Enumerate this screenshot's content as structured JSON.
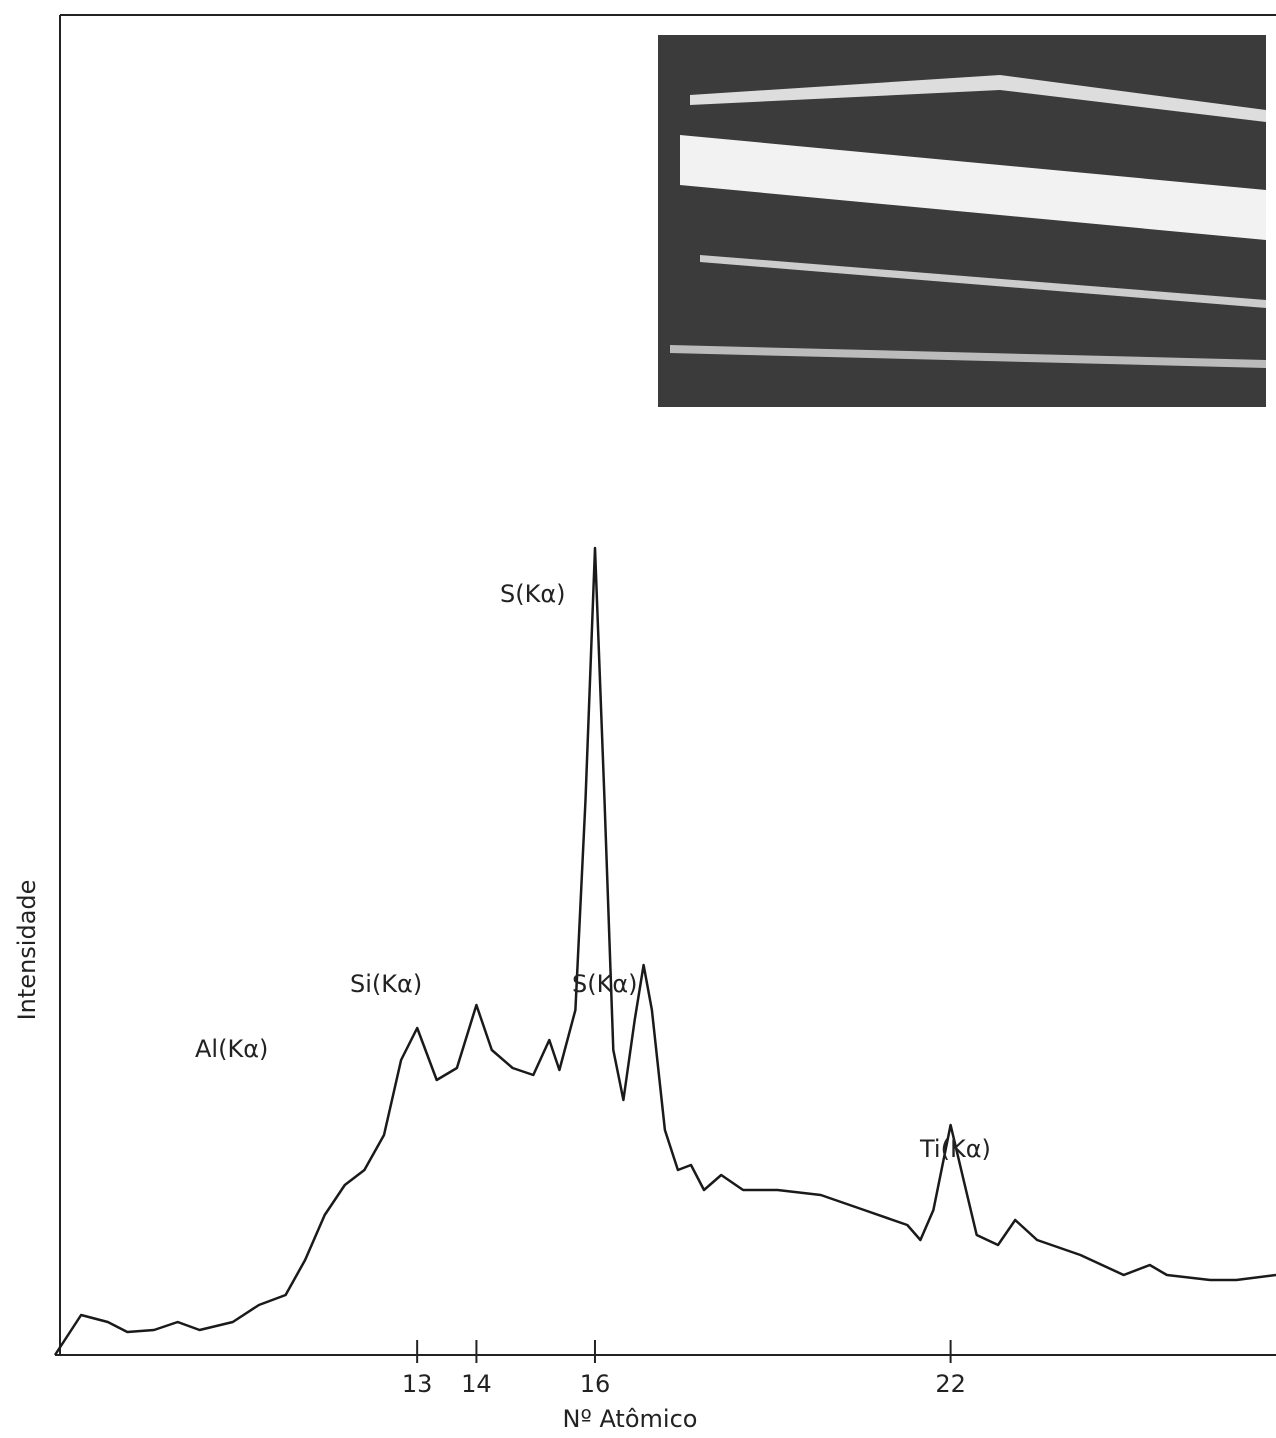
{
  "chart_data": {
    "type": "line",
    "x_label": "Nº Atômico",
    "y_label": "Intensidade",
    "x": [
      6.89,
      7.33,
      7.78,
      8.11,
      8.56,
      8.96,
      9.33,
      9.89,
      10.33,
      10.78,
      11.11,
      11.44,
      11.78,
      12.11,
      12.44,
      12.73,
      13,
      13.33,
      13.67,
      14,
      14.26,
      14.61,
      14.96,
      15.23,
      15.4,
      15.67,
      15.84,
      16,
      16.16,
      16.31,
      16.48,
      16.67,
      16.82,
      16.96,
      17.18,
      17.4,
      17.62,
      17.84,
      18.13,
      18.5,
      19.08,
      19.81,
      20.54,
      21.27,
      21.49,
      21.71,
      22,
      22.22,
      22.44,
      22.8,
      23.09,
      23.46,
      24.19,
      24.92,
      25.36,
      25.65,
      26.38,
      26.82,
      27.49
    ],
    "series": [
      {
        "color": "#1a1a1a",
        "values": [
          0,
          4,
          3.3,
          2.3,
          2.5,
          3.3,
          2.5,
          3.3,
          5,
          6,
          9.5,
          14,
          17,
          18.5,
          22,
          29.5,
          32.7,
          27.5,
          28.7,
          35,
          30.5,
          28.7,
          28,
          31.5,
          28.5,
          34.5,
          55.5,
          80.7,
          55.5,
          30.5,
          25.5,
          33.5,
          39,
          34.5,
          22.5,
          18.5,
          19,
          16.5,
          18,
          16.5,
          16.5,
          16,
          14.5,
          13,
          11.5,
          14.5,
          23,
          17.5,
          12,
          11,
          13.5,
          11.5,
          10,
          8,
          9,
          8,
          7.5,
          7.5,
          8
        ]
      }
    ],
    "xlim": [
      6.89,
      27.49
    ],
    "ylim": [
      0,
      134
    ],
    "xticks": [
      13,
      14,
      16,
      22
    ],
    "annotations": [
      "Al(Kα)",
      "Si(Kα)",
      "S(Kα)",
      "S(Kα)",
      "Ti(Kα)"
    ]
  }
}
